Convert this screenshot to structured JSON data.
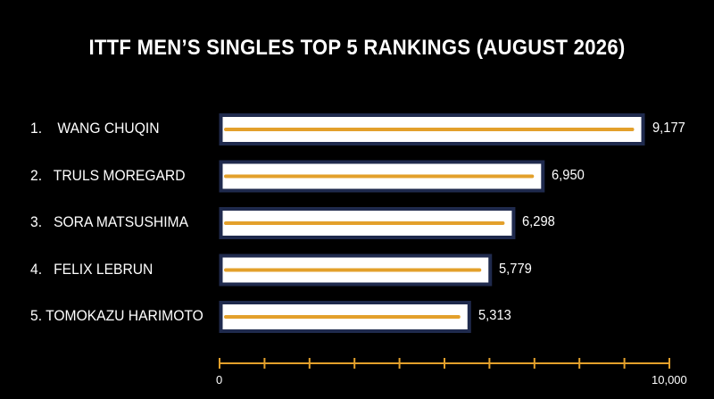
{
  "chart_data": {
    "type": "bar",
    "orientation": "horizontal",
    "title": "ITTF MEN’S SINGLES TOP 5 RANKINGS  (AUGUST 2026)",
    "categories": [
      "1.    WANG CHUQIN",
      "2.   TRULS MOREGARD",
      "3.   SORA MATSUSHIMA",
      "4.   FELIX LEBRUN",
      "5. TOMOKAZU HARIMOTO"
    ],
    "values": [
      9177,
      6950,
      6298,
      5779,
      5313
    ],
    "value_labels": [
      "9,177",
      "6,950",
      "6,298",
      "5,779",
      "5,313"
    ],
    "xlim": [
      0,
      10000
    ],
    "x_tick_labels": [
      "0",
      "10,000"
    ],
    "minor_tick_count": 9,
    "grid": false,
    "legend": "none",
    "colors": {
      "background": "#000000",
      "bar_fill": "#ffffff",
      "bar_border": "#1f2a4d",
      "bar_line": "#e3a02b",
      "axis": "#e3a02b",
      "text": "#ffffff"
    }
  }
}
